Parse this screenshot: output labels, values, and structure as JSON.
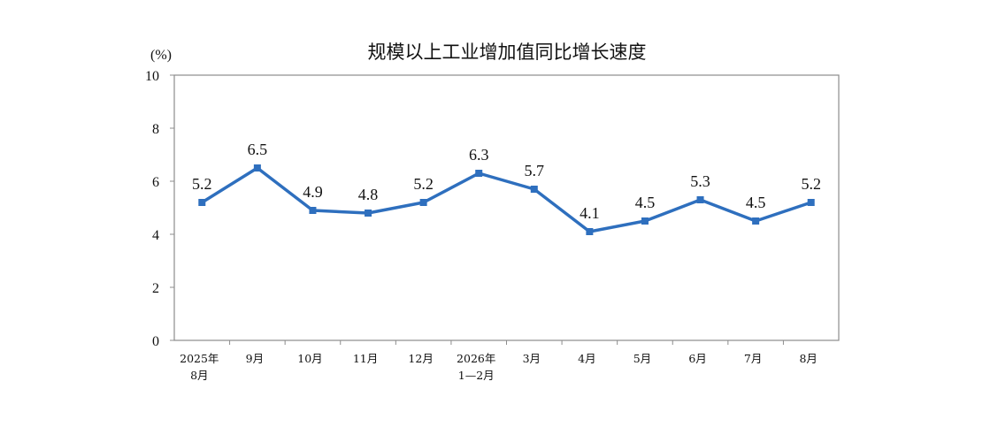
{
  "chart_data": {
    "type": "line",
    "title": "规模以上工业增加值同比增长速度",
    "unit_label": "(%)",
    "xlabel": "",
    "ylabel": "",
    "ylim": [
      0,
      10
    ],
    "yticks": [
      0,
      2,
      4,
      6,
      8,
      10
    ],
    "grid": false,
    "legend": "none",
    "categories": [
      [
        "2025年",
        "8月"
      ],
      [
        "9月"
      ],
      [
        "10月"
      ],
      [
        "11月"
      ],
      [
        "12月"
      ],
      [
        "2026年",
        "1—2月"
      ],
      [
        "3月"
      ],
      [
        "4月"
      ],
      [
        "5月"
      ],
      [
        "6月"
      ],
      [
        "7月"
      ],
      [
        "8月"
      ]
    ],
    "series": [
      {
        "values": [
          5.2,
          6.5,
          4.9,
          4.8,
          5.2,
          6.3,
          5.7,
          4.1,
          4.5,
          5.3,
          4.5,
          5.2
        ],
        "labels": [
          "5.2",
          "6.5",
          "4.9",
          "4.8",
          "5.2",
          "6.3",
          "5.7",
          "4.1",
          "4.5",
          "5.3",
          "4.5",
          "5.2"
        ],
        "color": "#2e6fbe"
      }
    ]
  }
}
